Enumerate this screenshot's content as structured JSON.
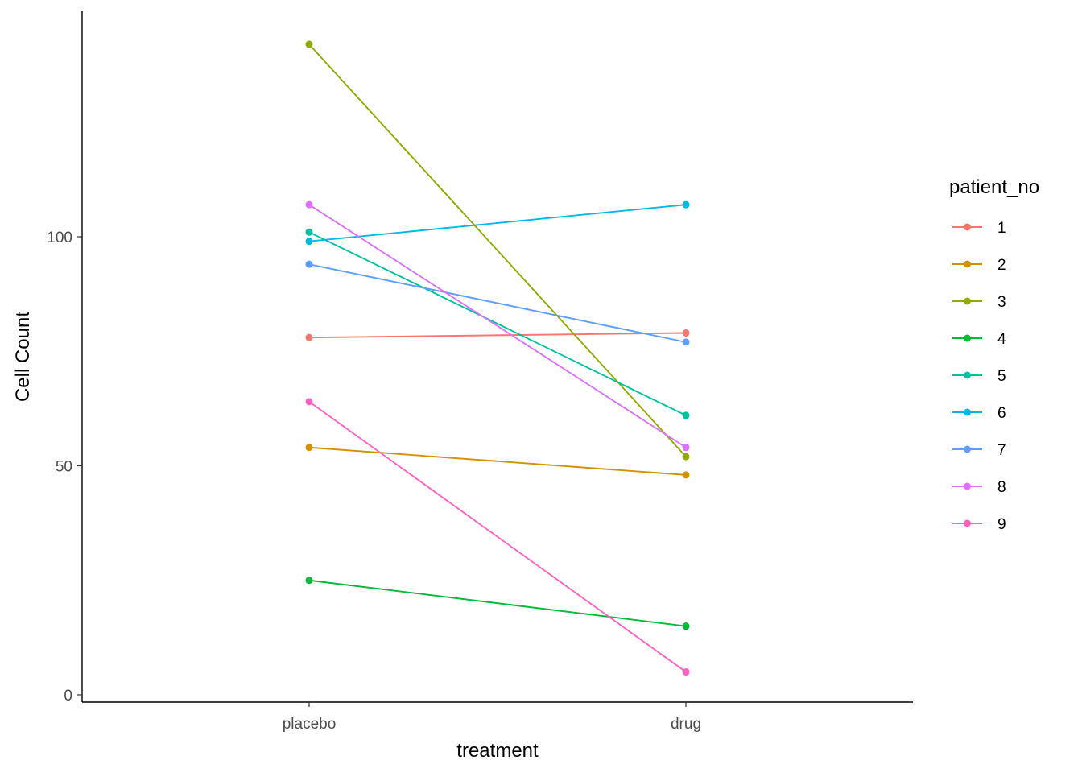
{
  "chart_data": {
    "type": "line",
    "title": "",
    "xlabel": "treatment",
    "ylabel": "Cell Count",
    "categories": [
      "placebo",
      "drug"
    ],
    "ylim": [
      0,
      140
    ],
    "yticks": [
      0,
      50,
      100
    ],
    "grid": false,
    "legend": {
      "title": "patient_no",
      "position": "right"
    },
    "series": [
      {
        "name": "1",
        "color": "#F8766D",
        "values": [
          78,
          79
        ]
      },
      {
        "name": "2",
        "color": "#D39200",
        "values": [
          54,
          48
        ]
      },
      {
        "name": "3",
        "color": "#93AA00",
        "values": [
          142,
          52
        ]
      },
      {
        "name": "4",
        "color": "#00BA38",
        "values": [
          25,
          15
        ]
      },
      {
        "name": "5",
        "color": "#00C19F",
        "values": [
          101,
          61
        ]
      },
      {
        "name": "6",
        "color": "#00B9E3",
        "values": [
          99,
          107
        ]
      },
      {
        "name": "7",
        "color": "#619CFF",
        "values": [
          94,
          77
        ]
      },
      {
        "name": "8",
        "color": "#DB72FB",
        "values": [
          107,
          54
        ]
      },
      {
        "name": "9",
        "color": "#FF61C3",
        "values": [
          64,
          5
        ]
      }
    ]
  }
}
